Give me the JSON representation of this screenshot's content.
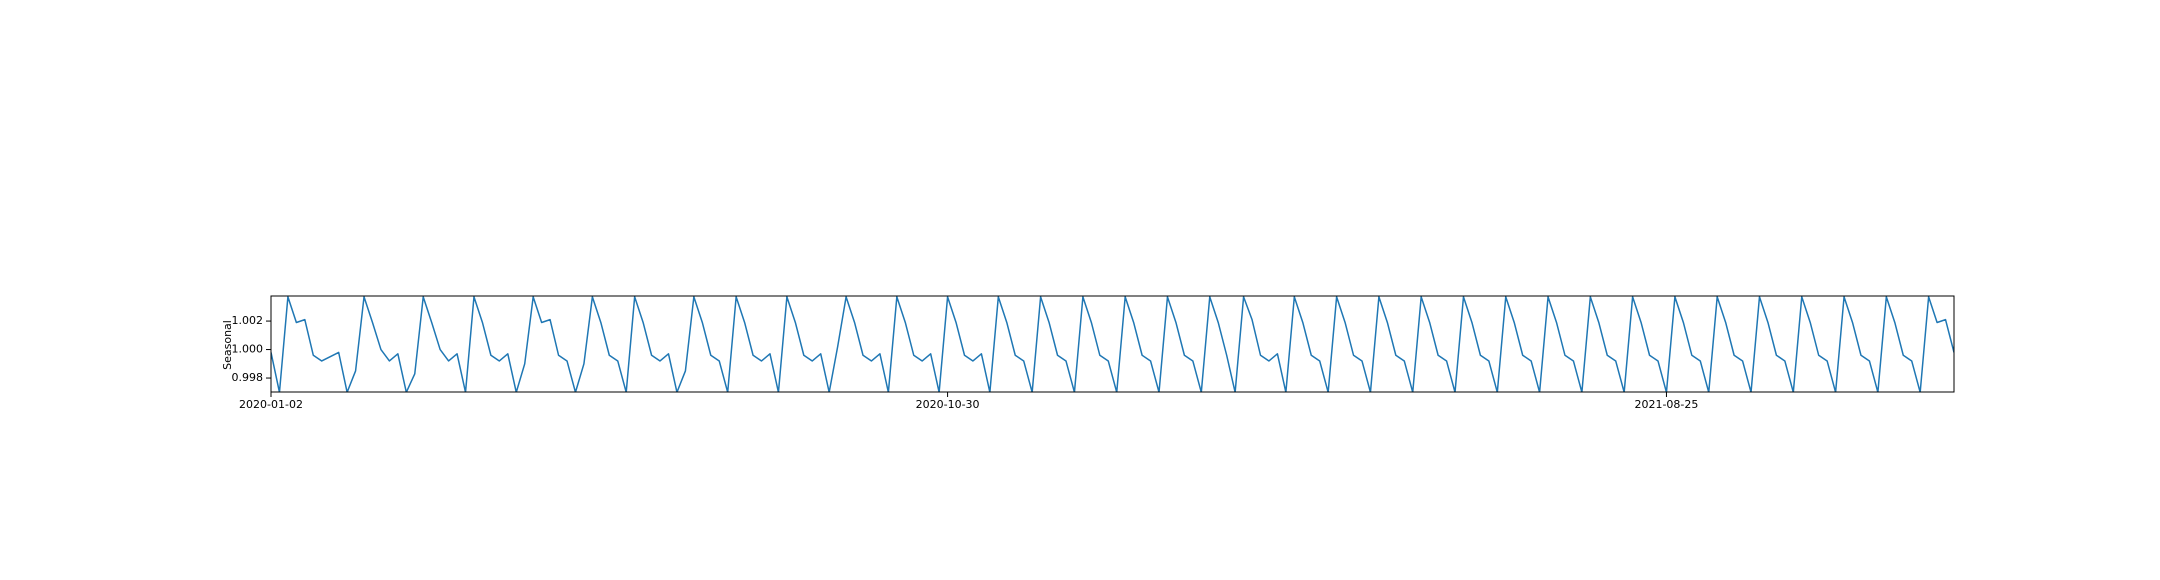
{
  "chart_data": {
    "type": "line",
    "ylabel": "Seasonal",
    "categories": [
      "2020-01-02",
      null,
      null,
      null,
      null,
      null,
      null,
      null,
      null,
      null,
      null,
      null,
      null,
      null,
      null,
      null,
      null,
      null,
      null,
      null,
      null,
      null,
      null,
      null,
      null,
      null,
      null,
      null,
      null,
      null,
      null,
      null,
      null,
      null,
      null,
      null,
      null,
      null,
      null,
      null,
      null,
      null,
      null,
      null,
      null,
      null,
      null,
      null,
      null,
      null,
      null,
      null,
      null,
      null,
      null,
      null,
      null,
      null,
      null,
      null,
      null,
      null,
      null,
      null,
      null,
      null,
      null,
      null,
      null,
      null,
      null,
      null,
      null,
      null,
      null,
      null,
      null,
      null,
      null,
      null,
      "2020-10-30",
      null,
      null,
      null,
      null,
      null,
      null,
      null,
      null,
      null,
      null,
      null,
      null,
      null,
      null,
      null,
      null,
      null,
      null,
      null,
      null,
      null,
      null,
      null,
      null,
      null,
      null,
      null,
      null,
      null,
      null,
      null,
      null,
      null,
      null,
      null,
      null,
      null,
      null,
      null,
      null,
      null,
      null,
      null,
      null,
      null,
      null,
      null,
      null,
      null,
      null,
      null,
      null,
      null,
      null,
      null,
      null,
      null,
      null,
      null,
      null,
      null,
      null,
      null,
      null,
      null,
      null,
      null,
      null,
      null,
      null,
      null,
      null,
      null,
      null,
      null,
      null,
      null,
      null,
      null,
      null,
      null,
      null,
      null,
      null,
      "2021-08-25",
      null,
      null,
      null,
      null,
      null,
      null,
      null,
      null,
      null,
      null,
      null,
      null,
      null,
      null,
      null,
      null,
      null,
      null,
      null,
      null,
      null,
      null,
      null,
      null,
      null,
      null,
      null,
      null,
      null,
      null,
      null,
      null,
      null,
      null
    ],
    "series": [
      {
        "color": "#1f77b4",
        "values": [
          0.9998,
          0.997,
          1.0037,
          1.0019,
          1.0021,
          0.9996,
          0.9992,
          0.9995,
          0.9998,
          0.997,
          0.9985,
          1.0037,
          1.0019,
          1.0,
          0.9992,
          0.9997,
          0.997,
          0.9983,
          1.0037,
          1.0019,
          1.0,
          0.9992,
          0.9997,
          0.997,
          1.0037,
          1.0019,
          0.9996,
          0.9992,
          0.9997,
          0.997,
          0.999,
          1.0037,
          1.0019,
          1.0021,
          0.9996,
          0.9992,
          0.997,
          0.999,
          1.0037,
          1.0019,
          0.9996,
          0.9992,
          0.997,
          1.0037,
          1.0019,
          0.9996,
          0.9992,
          0.9997,
          0.997,
          0.9985,
          1.0037,
          1.0019,
          0.9996,
          0.9992,
          0.997,
          1.0037,
          1.0019,
          0.9996,
          0.9992,
          0.9997,
          0.997,
          1.0037,
          1.0019,
          0.9996,
          0.9992,
          0.9997,
          0.997,
          1.0002,
          1.0037,
          1.0019,
          0.9996,
          0.9992,
          0.9997,
          0.997,
          1.0037,
          1.0019,
          0.9996,
          0.9992,
          0.9997,
          0.997,
          1.0037,
          1.0019,
          0.9996,
          0.9992,
          0.9997,
          0.997,
          1.0037,
          1.0019,
          0.9996,
          0.9992,
          0.997,
          1.0037,
          1.0019,
          0.9996,
          0.9992,
          0.997,
          1.0037,
          1.0019,
          0.9996,
          0.9992,
          0.997,
          1.0037,
          1.0019,
          0.9996,
          0.9992,
          0.997,
          1.0037,
          1.0019,
          0.9996,
          0.9992,
          0.997,
          1.0037,
          1.0019,
          0.9996,
          0.997,
          1.0037,
          1.0021,
          0.9996,
          0.9992,
          0.9997,
          0.997,
          1.0037,
          1.0019,
          0.9996,
          0.9992,
          0.997,
          1.0037,
          1.0019,
          0.9996,
          0.9992,
          0.997,
          1.0037,
          1.0019,
          0.9996,
          0.9992,
          0.997,
          1.0037,
          1.0019,
          0.9996,
          0.9992,
          0.997,
          1.0037,
          1.0019,
          0.9996,
          0.9992,
          0.997,
          1.0037,
          1.0019,
          0.9996,
          0.9992,
          0.997,
          1.0037,
          1.0019,
          0.9996,
          0.9992,
          0.997,
          1.0037,
          1.0019,
          0.9996,
          0.9992,
          0.997,
          1.0037,
          1.0019,
          0.9996,
          0.9992,
          0.997,
          1.0037,
          1.0019,
          0.9996,
          0.9992,
          0.997,
          1.0037,
          1.0019,
          0.9996,
          0.9992,
          0.997,
          1.0037,
          1.0019,
          0.9996,
          0.9992,
          0.997,
          1.0037,
          1.0019,
          0.9996,
          0.9992,
          0.997,
          1.0037,
          1.0019,
          0.9996,
          0.9992,
          0.997,
          1.0037,
          1.0019,
          0.9996,
          0.9992,
          0.997,
          1.0037,
          1.0019,
          1.0021,
          0.9998
        ]
      }
    ],
    "ylim": [
      0.99702,
      1.00376
    ],
    "yticks": [
      0.998,
      {
        "value": 1.0,
        "label": "1.000"
      },
      1.002
    ]
  }
}
